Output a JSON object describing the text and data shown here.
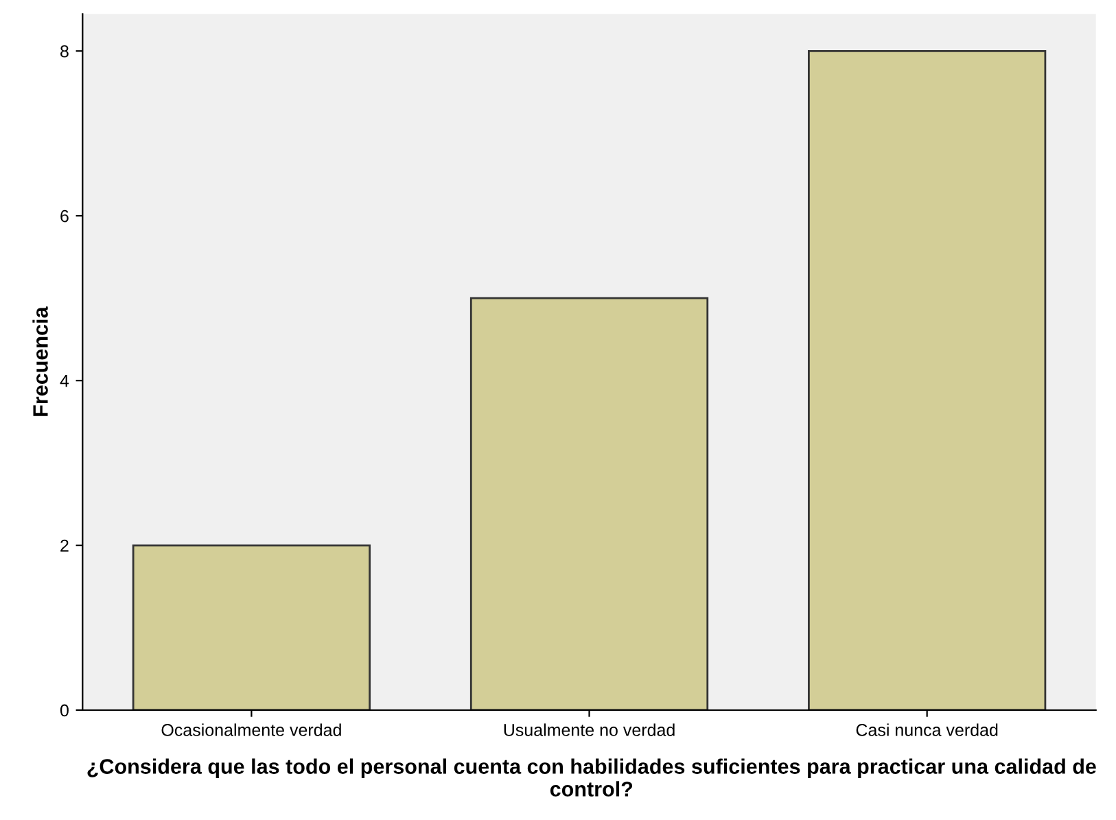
{
  "chart_data": {
    "type": "bar",
    "xlabel": "¿Considera que las todo el personal cuenta con habilidades suficientes para practicar una calidad de control?",
    "ylabel": "Frecuencia",
    "categories": [
      "Ocasionalmente verdad",
      "Usualmente no verdad",
      "Casi nunca verdad"
    ],
    "values": [
      2,
      5,
      8
    ],
    "color": "#d3ce97",
    "ylim": [
      0,
      8.45
    ],
    "yticks": [
      0,
      2,
      4,
      6,
      8
    ],
    "grid": false,
    "legend": false
  }
}
